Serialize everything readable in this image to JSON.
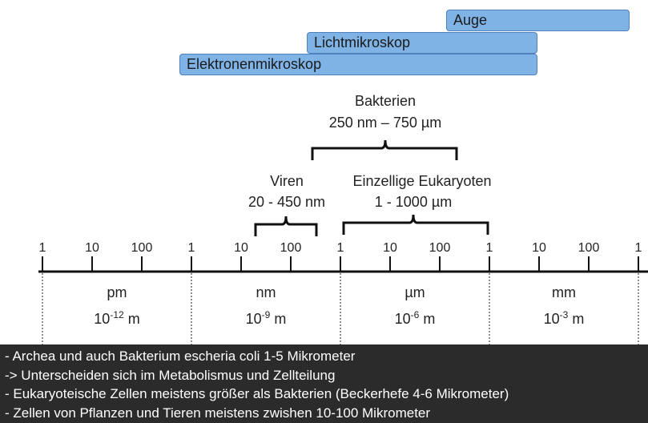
{
  "bars": {
    "auge": "Auge",
    "licht": "Lichtmikroskop",
    "elektronen": "Elektronenmikroskop"
  },
  "braces": {
    "bakterien": {
      "name": "Bakterien",
      "range": "250 nm – 750 µm"
    },
    "viren": {
      "name": "Viren",
      "range": "20 - 450 nm"
    },
    "eukaryoten": {
      "name": "Einzellige Eukaryoten",
      "range": "1 - 1000 µm"
    }
  },
  "scale": {
    "ticks": [
      "1",
      "10",
      "100",
      "1",
      "10",
      "100",
      "1",
      "10",
      "100",
      "1",
      "10",
      "100",
      "1"
    ],
    "units": [
      {
        "name": "pm",
        "base": "10",
        "exp": "-12",
        "suffix": "m"
      },
      {
        "name": "nm",
        "base": "10",
        "exp": "-9",
        "suffix": "m"
      },
      {
        "name": "µm",
        "base": "10",
        "exp": "-6",
        "suffix": "m"
      },
      {
        "name": "mm",
        "base": "10",
        "exp": "-3",
        "suffix": "m"
      }
    ]
  },
  "caption": {
    "lines": [
      "- Archea und auch Bakterium escheria coli 1-5 Mikrometer",
      "-> Unterscheiden sich im Metabolismus und Zellteilung",
      "- Eukaryoteische Zellen meistens größer als Bakterien (Beckerhefe 4-6 Mikrometer)",
      "- Zellen von Pflanzen und Tieren meistens zwishen 10-100 Mikrometer"
    ]
  }
}
